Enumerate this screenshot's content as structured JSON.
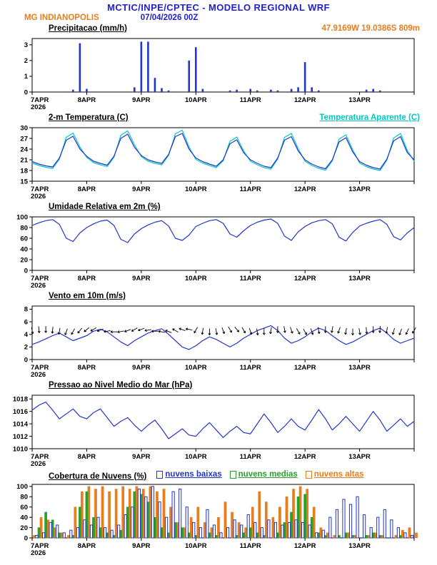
{
  "header": {
    "title": "MCTIC/INPE/CPTEC - MODELO REGIONAL WRF",
    "station": "MG INDIANOPOLIS",
    "run_datetime": "07/04/2026 00Z",
    "coordinates": "47.9169W 19.0386S 809m"
  },
  "colors": {
    "header_blue": "#2222cc",
    "orange": "#e87d1e",
    "line_blue": "#2236c8",
    "cyan": "#00c8c0",
    "green": "#2ca02c",
    "black": "#000000"
  },
  "time_axis": {
    "total_hours": 168,
    "step_hours": 3,
    "labels": [
      "7APR",
      "8APR",
      "9APR",
      "10APR",
      "11APR",
      "12APR",
      "13APR"
    ],
    "year": "2026"
  },
  "chart_data": [
    {
      "type": "bar",
      "title": "Precipitacao (mm/h)",
      "ylim": [
        0,
        3.4
      ],
      "yticks": [
        0,
        1,
        2,
        3
      ],
      "series": [
        {
          "name": "precipitacao",
          "color": "#2236c8",
          "values": [
            0,
            0,
            0,
            0,
            0,
            0,
            0.15,
            3.1,
            0.2,
            0,
            0,
            0,
            0,
            0,
            0,
            0.3,
            3.2,
            3.2,
            0.9,
            0.25,
            0.1,
            0,
            0,
            2,
            2.85,
            0.2,
            0,
            0,
            0,
            0.1,
            0.15,
            0,
            0.2,
            0.1,
            0,
            0.15,
            0.1,
            0,
            0.2,
            0.3,
            1.9,
            0.3,
            0.1,
            0,
            0,
            0,
            0,
            0,
            0,
            0.15,
            0.2,
            0.1,
            0,
            0,
            0,
            0,
            0
          ]
        }
      ]
    },
    {
      "type": "line",
      "title": "2-m Temperatura (C)",
      "legend_right": "Temperatura Aparente (C)",
      "ylim": [
        15,
        30
      ],
      "yticks": [
        15,
        18,
        21,
        24,
        27,
        30
      ],
      "series": [
        {
          "name": "temperatura_aparente",
          "color": "#00c8c0",
          "values": [
            20.1,
            19.4,
            18.9,
            18.6,
            21.2,
            27.3,
            28.5,
            24.6,
            21.7,
            20.2,
            19.6,
            19.1,
            21.7,
            27.9,
            29.1,
            25.2,
            21.9,
            20.6,
            20,
            19.6,
            22.2,
            28.3,
            29.3,
            24.6,
            21.1,
            20.1,
            19.4,
            18.8,
            20.7,
            26.2,
            27.4,
            23.5,
            20.6,
            19.6,
            18.8,
            18.4,
            21.2,
            27.3,
            28.4,
            24.1,
            20.6,
            19.4,
            18.6,
            18.1,
            20.7,
            26.8,
            28,
            23.8,
            20.1,
            19.1,
            18.4,
            18,
            20.9,
            27.1,
            28.4,
            23.6,
            20.6
          ]
        },
        {
          "name": "temperatura_2m",
          "color": "#2236c8",
          "values": [
            20.5,
            19.8,
            19.3,
            19,
            21.5,
            26.5,
            27.6,
            24,
            22,
            20.6,
            20,
            19.5,
            22,
            27,
            28.2,
            24.5,
            22.2,
            21,
            20.4,
            20,
            22.5,
            27.5,
            28.4,
            24,
            21.5,
            20.5,
            19.8,
            19.2,
            21,
            25.5,
            26.6,
            23,
            21,
            20,
            19.2,
            18.8,
            21.5,
            26.5,
            27.5,
            23.5,
            21,
            19.8,
            19,
            18.5,
            21,
            26,
            27.2,
            23.2,
            20.5,
            19.5,
            18.8,
            18.4,
            21.2,
            26.3,
            27.5,
            23,
            21
          ]
        }
      ]
    },
    {
      "type": "line",
      "title": "Umidade Relativa em 2m (%)",
      "ylim": [
        0,
        100
      ],
      "yticks": [
        0,
        20,
        40,
        60,
        80,
        100
      ],
      "series": [
        {
          "name": "umidade_relativa",
          "color": "#2236c8",
          "values": [
            84,
            89,
            93,
            95,
            86,
            60,
            54,
            70,
            80,
            87,
            92,
            94,
            84,
            58,
            52,
            68,
            78,
            85,
            90,
            93,
            83,
            60,
            56,
            66,
            82,
            88,
            93,
            95,
            88,
            68,
            62,
            74,
            84,
            90,
            94,
            96,
            88,
            64,
            56,
            72,
            82,
            89,
            93,
            95,
            87,
            62,
            55,
            71,
            83,
            88,
            92,
            95,
            86,
            63,
            57,
            70,
            80
          ]
        }
      ]
    },
    {
      "type": "line",
      "title": "Vento em 10m (m/s)",
      "ylim": [
        0,
        8.5
      ],
      "yticks": [
        0,
        2,
        4,
        6,
        8
      ],
      "series": [
        {
          "name": "velocidade_vento",
          "color": "#2236c8",
          "values": [
            2.4,
            2.8,
            3.3,
            3.8,
            4.2,
            3.6,
            3,
            3.4,
            3.8,
            4.5,
            4.8,
            4.4,
            3.6,
            2.8,
            2.2,
            3,
            3.6,
            4.2,
            4.6,
            4.9,
            4,
            3,
            2,
            1.6,
            2.2,
            3,
            3.6,
            3.2,
            2.6,
            2,
            2.6,
            3.4,
            4,
            4.6,
            5,
            5.4,
            4.6,
            3.4,
            2.6,
            3,
            3.6,
            4.4,
            5,
            4.6,
            3.8,
            3,
            2.4,
            2.8,
            3.4,
            4,
            4.6,
            5,
            4.2,
            3.2,
            2.6,
            3,
            3.4
          ]
        }
      ],
      "barbs": {
        "name": "direcao_vento",
        "color": "#000000",
        "base": 4.6,
        "dirs_deg": [
          80,
          85,
          90,
          95,
          100,
          110,
          120,
          130,
          140,
          150,
          160,
          170,
          180,
          170,
          160,
          150,
          160,
          170,
          180,
          190,
          200,
          210,
          200,
          190,
          120,
          100,
          90,
          80,
          70,
          60,
          50,
          60,
          70,
          80,
          90,
          100,
          90,
          80,
          70,
          60,
          60,
          70,
          80,
          90,
          100,
          110,
          100,
          90,
          80,
          85,
          90,
          95,
          100,
          105,
          110,
          115,
          120
        ]
      }
    },
    {
      "type": "line",
      "title": "Pressao ao Nivel Medio do Mar (hPa)",
      "ylim": [
        1010,
        1018.6
      ],
      "yticks": [
        1010,
        1012,
        1014,
        1016,
        1018
      ],
      "series": [
        {
          "name": "pressao_nmm",
          "color": "#2236c8",
          "values": [
            1016.2,
            1017,
            1017.5,
            1016.2,
            1014.8,
            1015.6,
            1016.4,
            1015.2,
            1014.8,
            1015.8,
            1016.4,
            1015,
            1013.6,
            1014.4,
            1015,
            1013.8,
            1012.8,
            1013.8,
            1014.6,
            1013.2,
            1011.6,
            1012.4,
            1013.2,
            1012.2,
            1012,
            1013.2,
            1014.2,
            1013,
            1011.8,
            1012.8,
            1013.6,
            1012.6,
            1012.4,
            1014,
            1015.6,
            1014.2,
            1012.6,
            1013.6,
            1014.8,
            1013.6,
            1013,
            1014.6,
            1016.3,
            1014.8,
            1013,
            1014,
            1015.2,
            1014,
            1012.8,
            1014.4,
            1016,
            1014.6,
            1012.8,
            1013.8,
            1014.8,
            1013.6,
            1014.4
          ]
        }
      ]
    },
    {
      "type": "bar3",
      "title": "Cobertura de Nuvens (%)",
      "ylim": [
        0,
        104
      ],
      "yticks": [
        0,
        20,
        40,
        60,
        80,
        100
      ],
      "series": [
        {
          "name": "nuvens_baixas",
          "label": "nuvens baixas",
          "color": "#2236c8",
          "style": "outline",
          "dx": -3,
          "values": [
            0,
            5,
            10,
            30,
            25,
            10,
            15,
            20,
            35,
            25,
            40,
            20,
            15,
            25,
            45,
            60,
            95,
            80,
            100,
            70,
            40,
            90,
            95,
            60,
            30,
            20,
            55,
            25,
            10,
            20,
            35,
            25,
            45,
            30,
            20,
            35,
            30,
            25,
            30,
            35,
            30,
            25,
            10,
            15,
            40,
            55,
            75,
            65,
            80,
            45,
            20,
            40,
            55,
            35,
            20,
            10,
            5
          ]
        },
        {
          "name": "nuvens_medias",
          "label": "nuvens medias",
          "color": "#2ca02c",
          "style": "fill",
          "dx": 0,
          "values": [
            0,
            20,
            50,
            35,
            10,
            0,
            5,
            60,
            90,
            40,
            20,
            10,
            5,
            15,
            60,
            90,
            85,
            70,
            40,
            20,
            10,
            30,
            20,
            10,
            5,
            0,
            10,
            5,
            0,
            0,
            5,
            10,
            20,
            10,
            5,
            0,
            10,
            30,
            50,
            80,
            85,
            40,
            10,
            5,
            0,
            5,
            10,
            5,
            0,
            5,
            10,
            5,
            0,
            0,
            5,
            0,
            0
          ]
        },
        {
          "name": "nuvens_altas",
          "label": "nuvens altas",
          "color": "#e87d1e",
          "style": "fill",
          "dx": 3,
          "values": [
            5,
            40,
            35,
            20,
            10,
            5,
            60,
            90,
            100,
            95,
            100,
            90,
            95,
            100,
            95,
            100,
            95,
            100,
            90,
            95,
            60,
            30,
            20,
            40,
            60,
            30,
            20,
            40,
            70,
            50,
            30,
            20,
            60,
            90,
            70,
            40,
            60,
            80,
            95,
            100,
            95,
            60,
            20,
            10,
            5,
            0,
            10,
            5,
            0,
            5,
            10,
            5,
            0,
            5,
            15,
            20,
            10
          ]
        }
      ]
    }
  ]
}
